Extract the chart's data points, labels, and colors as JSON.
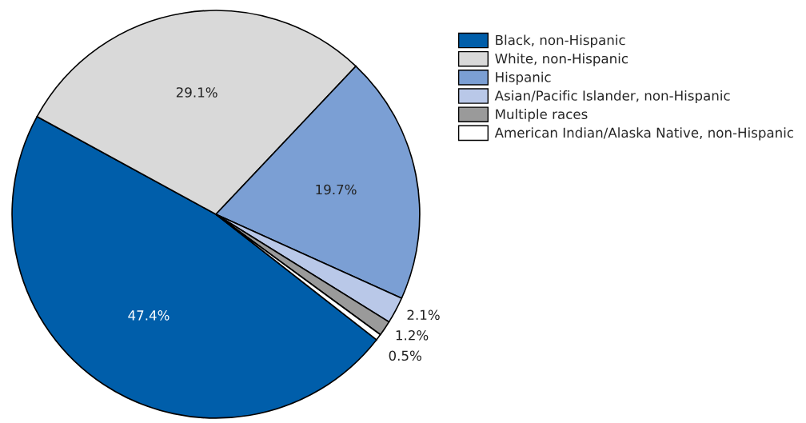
{
  "chart_data": {
    "type": "pie",
    "categories": [
      "Black, non-Hispanic",
      "White, non-Hispanic",
      "Hispanic",
      "Asian/Pacific Islander, non-Hispanic",
      "Multiple races",
      "American Indian/Alaska Native, non-Hispanic"
    ],
    "values": [
      47.4,
      29.1,
      19.7,
      2.1,
      1.2,
      0.5
    ],
    "value_labels": [
      "47.4%",
      "29.1%",
      "19.7%",
      "2.1%",
      "1.2%",
      "0.5%"
    ],
    "colors": [
      "#005eaa",
      "#d9d9d9",
      "#7b9fd4",
      "#b9c8e8",
      "#9a9a9a",
      "#ffffff"
    ],
    "legend": "top right"
  }
}
